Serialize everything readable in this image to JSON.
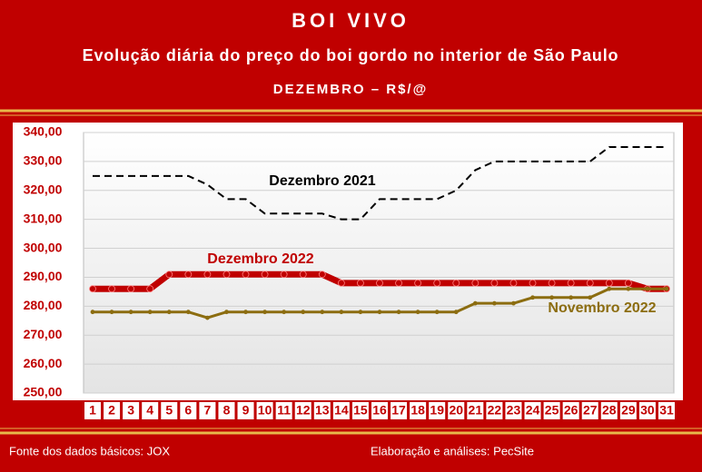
{
  "chart_data": {
    "type": "line",
    "title": "BOI VIVO",
    "subtitle": "Evolução diária do preço do boi gordo no interior de São Paulo",
    "unit_label": "DEZEMBRO – R$/@",
    "categories": [
      "1",
      "2",
      "3",
      "4",
      "5",
      "6",
      "7",
      "8",
      "9",
      "10",
      "11",
      "12",
      "13",
      "14",
      "15",
      "16",
      "17",
      "18",
      "19",
      "20",
      "21",
      "22",
      "23",
      "24",
      "25",
      "26",
      "27",
      "28",
      "29",
      "30",
      "31"
    ],
    "series": [
      {
        "name": "Dezembro 2021",
        "color": "#000000",
        "style": "dashed",
        "values": [
          325,
          325,
          325,
          325,
          325,
          325,
          322,
          317,
          317,
          312,
          312,
          312,
          312,
          310,
          310,
          317,
          317,
          317,
          317,
          320,
          327,
          330,
          330,
          330,
          330,
          330,
          330,
          335,
          335,
          335,
          335
        ]
      },
      {
        "name": "Dezembro 2022",
        "color": "#c00000",
        "style": "thick",
        "values": [
          286,
          286,
          286,
          286,
          291,
          291,
          291,
          291,
          291,
          291,
          291,
          291,
          291,
          288,
          288,
          288,
          288,
          288,
          288,
          288,
          288,
          288,
          288,
          288,
          288,
          288,
          288,
          288,
          288,
          286,
          286
        ]
      },
      {
        "name": "Novembro 2022",
        "color": "#8c6d10",
        "style": "solid",
        "values": [
          278,
          278,
          278,
          278,
          278,
          278,
          276,
          278,
          278,
          278,
          278,
          278,
          278,
          278,
          278,
          278,
          278,
          278,
          278,
          278,
          281,
          281,
          281,
          283,
          283,
          283,
          283,
          286,
          286,
          286,
          286
        ]
      }
    ],
    "ylim": [
      250,
      340
    ],
    "yticks": [
      {
        "value": 250,
        "label": "250,00"
      },
      {
        "value": 260,
        "label": "260,00"
      },
      {
        "value": 270,
        "label": "270,00"
      },
      {
        "value": 280,
        "label": "280,00"
      },
      {
        "value": 290,
        "label": "290,00"
      },
      {
        "value": 300,
        "label": "300,00"
      },
      {
        "value": 310,
        "label": "310,00"
      },
      {
        "value": 320,
        "label": "320,00"
      },
      {
        "value": 330,
        "label": "330,00"
      },
      {
        "value": 340,
        "label": "340,00"
      }
    ],
    "grid": true,
    "source": "Fonte dos dados básicos: JOX",
    "credit": "Elaboração e análises: PecSite"
  }
}
